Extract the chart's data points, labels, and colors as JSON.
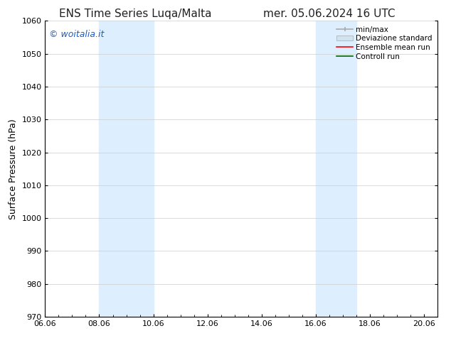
{
  "title_left": "ENS Time Series Luqa/Malta",
  "title_right": "mer. 05.06.2024 16 UTC",
  "ylabel": "Surface Pressure (hPa)",
  "ylim": [
    970,
    1060
  ],
  "yticks": [
    970,
    980,
    990,
    1000,
    1010,
    1020,
    1030,
    1040,
    1050,
    1060
  ],
  "xlim_start": 0,
  "xlim_end": 14,
  "xtick_labels": [
    "06.06",
    "08.06",
    "10.06",
    "12.06",
    "14.06",
    "16.06",
    "18.06",
    "20.06"
  ],
  "xtick_positions": [
    0,
    2,
    4,
    6,
    8,
    10,
    12,
    14
  ],
  "shaded_bands": [
    {
      "x_start": 2,
      "x_end": 4
    },
    {
      "x_start": 10,
      "x_end": 11.5
    }
  ],
  "shade_color": "#ddeeff",
  "watermark_text": "© woitalia.it",
  "watermark_color": "#1a5dc8",
  "legend_labels": [
    "min/max",
    "Deviazione standard",
    "Ensemble mean run",
    "Controll run"
  ],
  "bg_color": "#ffffff",
  "title_fontsize": 11,
  "tick_fontsize": 8,
  "ylabel_fontsize": 9,
  "watermark_fontsize": 9,
  "legend_fontsize": 7.5
}
